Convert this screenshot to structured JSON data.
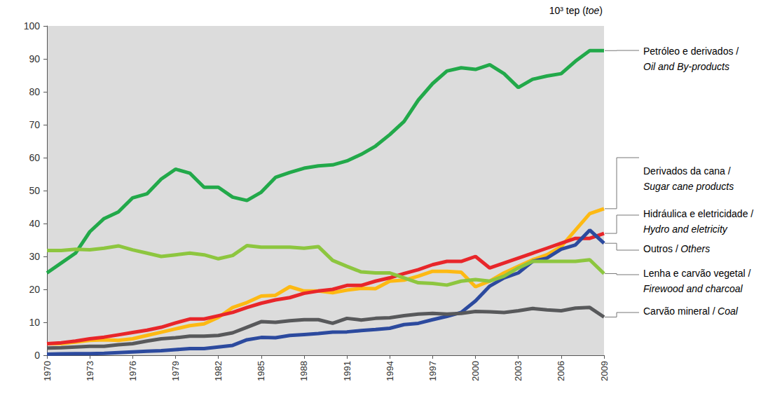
{
  "chart_data": {
    "type": "line",
    "ylabel": "10³ tep (toe)",
    "x": [
      1970,
      1971,
      1972,
      1973,
      1974,
      1975,
      1976,
      1977,
      1978,
      1979,
      1980,
      1981,
      1982,
      1983,
      1984,
      1985,
      1986,
      1987,
      1988,
      1989,
      1990,
      1991,
      1992,
      1993,
      1994,
      1995,
      1996,
      1997,
      1998,
      1999,
      2000,
      2001,
      2002,
      2003,
      2004,
      2005,
      2006,
      2007,
      2008,
      2009
    ],
    "xlim": [
      1970,
      2009
    ],
    "xticks": [
      1970,
      1973,
      1976,
      1979,
      1982,
      1985,
      1988,
      1991,
      1994,
      1997,
      2000,
      2003,
      2006,
      2009
    ],
    "ylim": [
      0,
      100
    ],
    "yticks": [
      0,
      10,
      20,
      30,
      40,
      50,
      60,
      70,
      80,
      90,
      100
    ],
    "grid": false,
    "series": [
      {
        "name": "Petróleo e derivados / Oil and By-products",
        "color": "#22a94a",
        "values": [
          25,
          28,
          31,
          37.5,
          41.5,
          43.5,
          47.8,
          49,
          53.5,
          56.5,
          55.3,
          51,
          51,
          48,
          47,
          49.5,
          54,
          55.5,
          56.8,
          57.5,
          57.8,
          59,
          61,
          63.5,
          67,
          71,
          77.5,
          82.5,
          86.3,
          87.3,
          86.8,
          88.2,
          85.5,
          81.3,
          83.8,
          84.8,
          85.5,
          89.3,
          92.5,
          92.5
        ]
      },
      {
        "name": "Derivados da cana / Sugar cane products",
        "color": "#fdb913",
        "values": [
          3.5,
          3.5,
          4,
          4.5,
          4.7,
          4.5,
          5,
          6,
          7,
          8,
          9,
          9.5,
          11.5,
          14.5,
          16,
          18,
          18.2,
          20.8,
          19.5,
          19.5,
          19,
          19.8,
          20.3,
          20.2,
          22.5,
          22.8,
          24,
          25.5,
          25.5,
          25.2,
          20.8,
          22.5,
          25,
          27,
          29,
          30.5,
          33,
          38,
          43,
          44.5
        ]
      },
      {
        "name": "Hidráulica e eletricidade / Hydro and eletricity",
        "color": "#e8262a",
        "values": [
          3.5,
          3.8,
          4.3,
          5,
          5.5,
          6.2,
          6.9,
          7.6,
          8.5,
          9.8,
          11,
          11,
          12,
          13,
          14.5,
          15.8,
          16.8,
          17.5,
          18.8,
          19.5,
          20,
          21.2,
          21.2,
          22.5,
          23.5,
          24.8,
          26,
          27.5,
          28.5,
          28.5,
          30,
          26.5,
          28,
          29.5,
          31,
          32.5,
          34,
          35.5,
          35.5,
          37
        ]
      },
      {
        "name": "Outros / Others",
        "color": "#2c4a9e",
        "values": [
          0.3,
          0.4,
          0.5,
          0.5,
          0.6,
          0.8,
          1,
          1.2,
          1.4,
          1.7,
          2,
          2,
          2.5,
          3,
          4.7,
          5.4,
          5.3,
          6,
          6.3,
          6.6,
          7,
          7.1,
          7.5,
          7.8,
          8.2,
          9.3,
          9.7,
          10.8,
          11.8,
          13,
          16.5,
          21,
          23.5,
          25,
          28.5,
          29.5,
          32.2,
          33.5,
          38,
          34
        ]
      },
      {
        "name": "Lenha e carvão vegetal / Firewood and charcoal",
        "color": "#8dc63f",
        "values": [
          31.8,
          31.8,
          32.2,
          32,
          32.5,
          33.2,
          32,
          31,
          30,
          30.5,
          31,
          30.5,
          29.3,
          30.3,
          33.3,
          32.8,
          32.8,
          32.8,
          32.5,
          33,
          28.8,
          27,
          25.3,
          25,
          25,
          23.5,
          22,
          21.8,
          21.3,
          22.5,
          23,
          22.5,
          24,
          26.5,
          28.5,
          28.5,
          28.5,
          28.5,
          29,
          24.8
        ]
      },
      {
        "name": "Carvão mineral / Coal",
        "color": "#58595b",
        "values": [
          2.2,
          2.3,
          2.5,
          2.7,
          2.7,
          3.2,
          3.5,
          4.3,
          5,
          5.3,
          5.8,
          5.8,
          6,
          6.8,
          8.5,
          10.2,
          10,
          10.5,
          10.8,
          10.8,
          9.7,
          11.2,
          10.7,
          11.2,
          11.4,
          12,
          12.5,
          12.7,
          12.5,
          12.7,
          13.3,
          13.2,
          13,
          13.5,
          14.2,
          13.8,
          13.5,
          14.3,
          14.5,
          11.6
        ]
      }
    ]
  }
}
